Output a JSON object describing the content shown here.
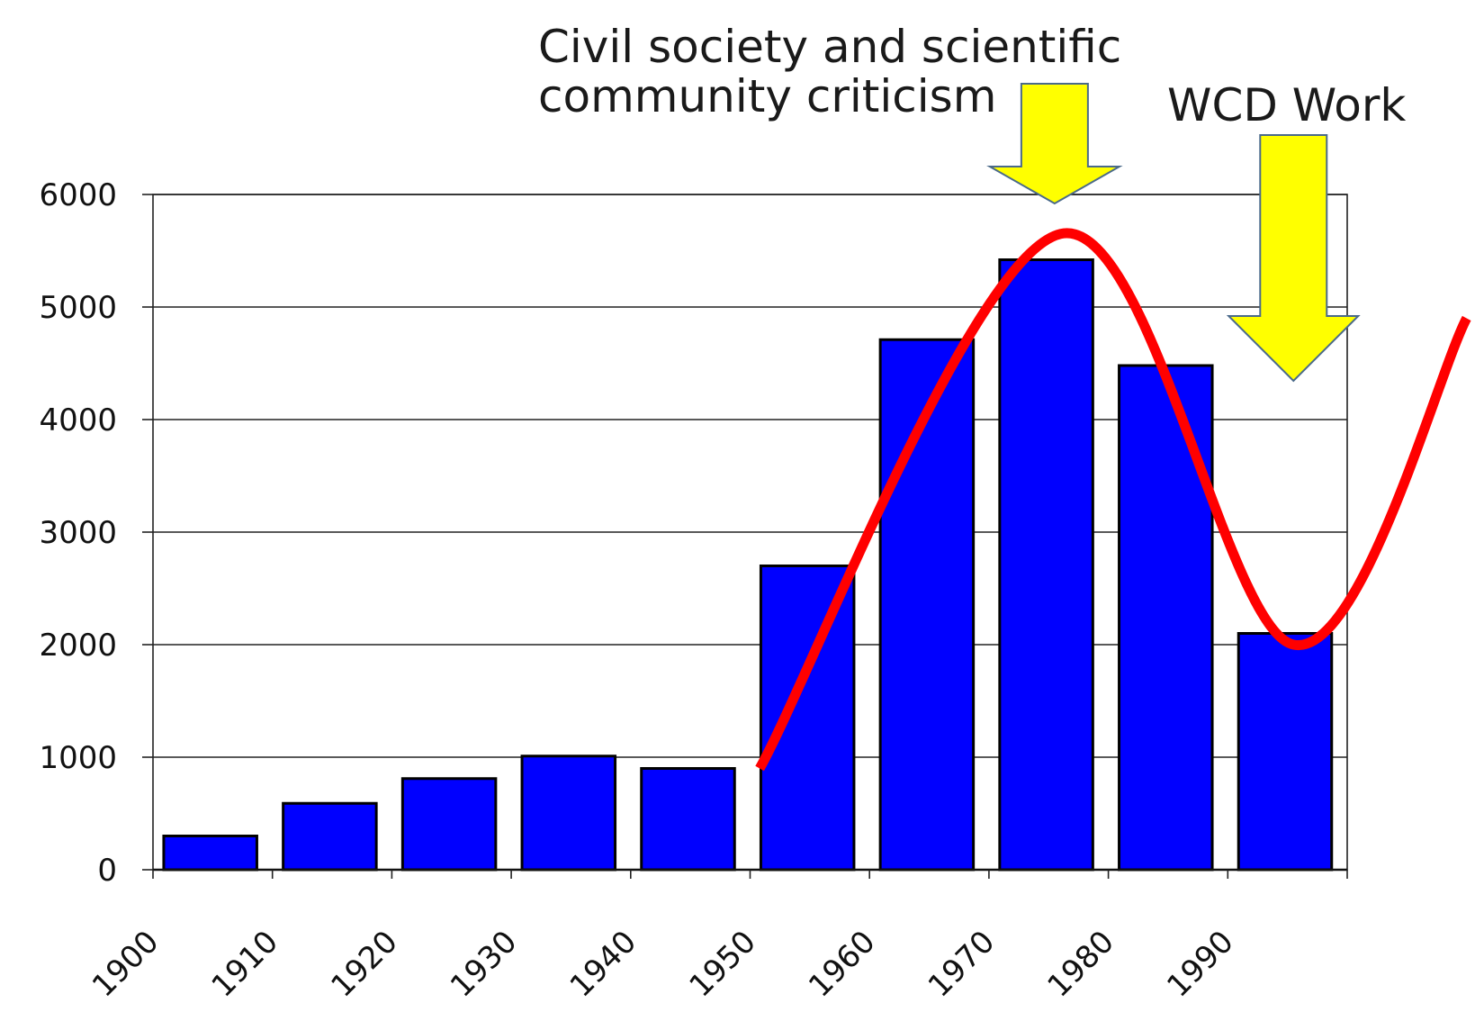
{
  "chart_data": {
    "type": "bar",
    "categories": [
      "1900",
      "1910",
      "1920",
      "1930",
      "1940",
      "1950",
      "1960",
      "1970",
      "1980",
      "1990"
    ],
    "values": [
      300,
      590,
      810,
      1010,
      900,
      2700,
      4710,
      5420,
      4480,
      2100
    ],
    "ylim": [
      0,
      6000
    ],
    "yticks": [
      "0",
      "1000",
      "2000",
      "3000",
      "4000",
      "5000",
      "6000"
    ],
    "xtick_labels": [
      "1900",
      "1910",
      "1920",
      "1930",
      "1940",
      "1950",
      "1960",
      "1970",
      "1980",
      "1990"
    ],
    "grid": true,
    "bar_color": "#0000ff",
    "trend_color": "#ff0000",
    "arrow_color": "#ffff00",
    "trend_points": [
      {
        "x": 1950.8,
        "y": 900
      },
      {
        "x": 1976.0,
        "y": 5650
      },
      {
        "x": 1995.5,
        "y": 2000
      },
      {
        "x": 2010.0,
        "y": 4900
      }
    ],
    "annotations": [
      {
        "lines": [
          "Civil society and scientific",
          "community criticism"
        ],
        "arrow_x": 1975.5
      },
      {
        "lines": [
          "WCD Work"
        ],
        "arrow_x": 1995.5
      }
    ]
  }
}
